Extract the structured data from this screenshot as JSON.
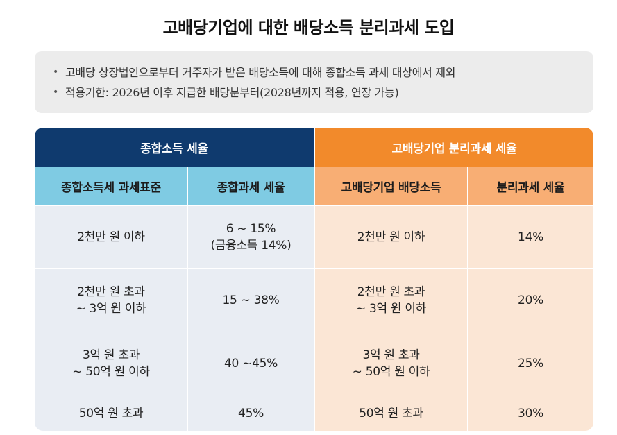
{
  "title": "고배당기업에 대한 배당소득 분리과세 도입",
  "notes": [
    "고배당 상장법인으로부터 거주자가 받은 배당소득에 대해 종합소득 과세 대상에서 제외",
    "적용기한: 2026년 이후 지급한 배당분부터(2028년까지 적용, 연장 가능)"
  ],
  "bullet": "•",
  "table": {
    "groups": {
      "left": "종합소득 세율",
      "right": "고배당기업 분리과세 세율"
    },
    "columns": [
      "종합소득세 과세표준",
      "종합과세 세율",
      "고배당기업 배당소득",
      "분리과세 세율"
    ],
    "rows": [
      [
        "2천만 원 이하",
        "6 ~ 15%\n(금융소득 14%)",
        "2천만 원 이하",
        "14%"
      ],
      [
        "2천만 원 초과\n~ 3억 원 이하",
        "15 ~ 38%",
        "2천만 원 초과\n~ 3억 원 이하",
        "20%"
      ],
      [
        "3억 원 초과\n~ 50억 원 이하",
        "40 ~45%",
        "3억 원 초과\n~ 50억 원 이하",
        "25%"
      ],
      [
        "50억 원 초과",
        "45%",
        "50억 원 초과",
        "30%"
      ]
    ]
  },
  "colors": {
    "left_header": "#0f3a6e",
    "right_header": "#f28a2b",
    "left_subheader": "#7fcbe3",
    "right_subheader": "#f8ae74",
    "left_body": "#e9edf3",
    "right_body": "#fbe6d5"
  }
}
